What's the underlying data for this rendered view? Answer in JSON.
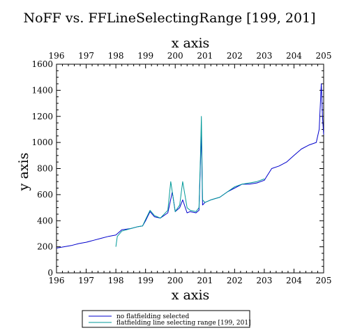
{
  "chart_data": {
    "type": "line",
    "title": "NoFF vs. FFLineSelectingRange [199, 201]",
    "xlabel": "x axis",
    "x2label": "x axis",
    "ylabel": "y axis",
    "xlim": [
      196,
      205
    ],
    "ylim": [
      0,
      1600
    ],
    "xticks": [
      "196",
      "197",
      "198",
      "199",
      "200",
      "201",
      "202",
      "203",
      "204",
      "205"
    ],
    "x2ticks": [
      "196",
      "197",
      "198",
      "199",
      "200",
      "201",
      "202",
      "203",
      "204",
      "205"
    ],
    "yticks": [
      "0",
      "200",
      "400",
      "600",
      "800",
      "1000",
      "1200",
      "1400",
      "1600"
    ],
    "grid": false,
    "legend_position": "bottom",
    "series": [
      {
        "name": "no flatfielding selected",
        "color": "#0000cc",
        "x": [
          196.0,
          196.25,
          196.5,
          196.75,
          197.0,
          197.25,
          197.5,
          197.75,
          198.0,
          198.2,
          198.5,
          198.75,
          198.9,
          199.0,
          199.15,
          199.3,
          199.5,
          199.75,
          199.9,
          200.0,
          200.15,
          200.25,
          200.4,
          200.5,
          200.7,
          200.8,
          200.88,
          200.92,
          201.0,
          201.2,
          201.5,
          201.75,
          202.0,
          202.25,
          202.5,
          202.75,
          203.0,
          203.25,
          203.5,
          203.75,
          204.0,
          204.25,
          204.5,
          204.75,
          204.85,
          204.92,
          204.96,
          205.0
        ],
        "y": [
          190,
          200,
          210,
          225,
          235,
          250,
          265,
          280,
          290,
          330,
          340,
          355,
          360,
          400,
          470,
          430,
          420,
          460,
          620,
          470,
          500,
          560,
          460,
          470,
          460,
          480,
          1080,
          520,
          540,
          560,
          580,
          620,
          650,
          680,
          680,
          690,
          710,
          800,
          820,
          850,
          900,
          950,
          980,
          1000,
          1100,
          1450,
          1200,
          1060
        ]
      },
      {
        "name": "flatfielding line selecting range [199, 201]",
        "color": "#009999",
        "x": [
          198.0,
          198.05,
          198.2,
          198.5,
          198.75,
          198.9,
          199.0,
          199.15,
          199.3,
          199.5,
          199.75,
          199.85,
          199.9,
          200.0,
          200.15,
          200.25,
          200.4,
          200.5,
          200.7,
          200.8,
          200.85,
          200.88,
          200.92,
          201.0,
          201.2,
          201.5,
          201.75,
          202.0,
          202.25,
          202.5,
          202.75,
          203.0
        ],
        "y": [
          200,
          280,
          320,
          340,
          355,
          360,
          410,
          480,
          440,
          420,
          480,
          700,
          620,
          470,
          520,
          700,
          500,
          480,
          470,
          500,
          900,
          1200,
          560,
          540,
          560,
          580,
          620,
          660,
          680,
          690,
          700,
          720
        ]
      }
    ]
  }
}
